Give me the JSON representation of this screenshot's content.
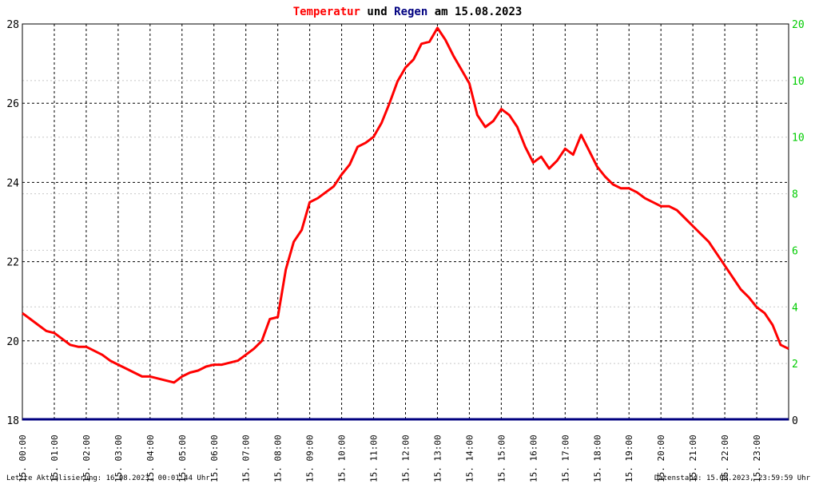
{
  "title": {
    "part1": "Temperatur",
    "part2": " und ",
    "part3": "Regen",
    "part4": " am 15.08.2023",
    "color1": "#ff0000",
    "color3": "#000080"
  },
  "footer": {
    "left": "Letzte Aktualisierung: 16.08.2023, 00:01:44 Uhr",
    "right": "Datenstand: 15.08.2023, 23:59:59 Uhr"
  },
  "chart_data": {
    "type": "line",
    "title": "Temperatur und Regen am 15.08.2023",
    "x_ticks": [
      "15. 00:00",
      "15. 01:00",
      "15. 02:00",
      "15. 03:00",
      "15. 04:00",
      "15. 05:00",
      "15. 06:00",
      "15. 07:00",
      "15. 08:00",
      "15. 09:00",
      "15. 10:00",
      "15. 11:00",
      "15. 12:00",
      "15. 13:00",
      "15. 14:00",
      "15. 15:00",
      "15. 16:00",
      "15. 17:00",
      "15. 18:00",
      "15. 19:00",
      "15. 20:00",
      "15. 21:00",
      "15. 22:00",
      "15. 23:00"
    ],
    "y_left": {
      "ticks": [
        18,
        20,
        22,
        24,
        26,
        28
      ],
      "ylim": [
        18,
        28
      ],
      "color": "#000000"
    },
    "y_right": {
      "ticks": [
        "0",
        "2",
        "4",
        "6",
        "8",
        "10",
        "10",
        "20"
      ],
      "color": "#00cc00"
    },
    "xlim_hours": [
      0,
      24
    ],
    "grid": true,
    "series": [
      {
        "name": "Temperatur",
        "color": "#ff0000",
        "x": [
          0,
          0.25,
          0.5,
          0.75,
          1,
          1.25,
          1.5,
          1.75,
          2,
          2.25,
          2.5,
          2.75,
          3,
          3.25,
          3.5,
          3.75,
          4,
          4.25,
          4.5,
          4.75,
          5,
          5.25,
          5.5,
          5.75,
          6,
          6.25,
          6.5,
          6.75,
          7,
          7.25,
          7.5,
          7.75,
          8,
          8.25,
          8.5,
          8.75,
          9,
          9.25,
          9.5,
          9.75,
          10,
          10.25,
          10.5,
          10.75,
          11,
          11.25,
          11.5,
          11.75,
          12,
          12.25,
          12.5,
          12.75,
          13,
          13.25,
          13.5,
          13.75,
          14,
          14.25,
          14.5,
          14.75,
          15,
          15.25,
          15.5,
          15.75,
          16,
          16.25,
          16.5,
          16.75,
          17,
          17.25,
          17.5,
          17.75,
          18,
          18.25,
          18.5,
          18.75,
          19,
          19.25,
          19.5,
          19.75,
          20,
          20.25,
          20.5,
          20.75,
          21,
          21.25,
          21.5,
          21.75,
          22,
          22.25,
          22.5,
          22.75,
          23,
          23.25,
          23.5,
          23.75,
          24
        ],
        "y": [
          20.7,
          20.55,
          20.4,
          20.25,
          20.2,
          20.05,
          19.9,
          19.85,
          19.85,
          19.75,
          19.65,
          19.5,
          19.4,
          19.3,
          19.2,
          19.1,
          19.1,
          19.05,
          19.0,
          18.95,
          19.1,
          19.2,
          19.25,
          19.35,
          19.4,
          19.4,
          19.45,
          19.5,
          19.65,
          19.8,
          20.0,
          20.55,
          20.6,
          21.8,
          22.5,
          22.8,
          23.5,
          23.6,
          23.75,
          23.9,
          24.2,
          24.45,
          24.9,
          25.0,
          25.15,
          25.5,
          26.0,
          26.55,
          26.9,
          27.1,
          27.5,
          27.55,
          27.9,
          27.6,
          27.2,
          26.85,
          26.5,
          25.7,
          25.4,
          25.55,
          25.85,
          25.7,
          25.4,
          24.9,
          24.5,
          24.65,
          24.35,
          24.55,
          24.85,
          24.7,
          25.2,
          24.8,
          24.4,
          24.15,
          23.95,
          23.85,
          23.85,
          23.75,
          23.6,
          23.5,
          23.4,
          23.4,
          23.3,
          23.1,
          22.9,
          22.7,
          22.5,
          22.2,
          21.9,
          21.6,
          21.3,
          21.1,
          20.85,
          20.7,
          20.4,
          19.9,
          19.8
        ]
      },
      {
        "name": "Regen",
        "color": "#000080",
        "x": [
          0,
          24
        ],
        "y": [
          0,
          0
        ]
      }
    ]
  }
}
